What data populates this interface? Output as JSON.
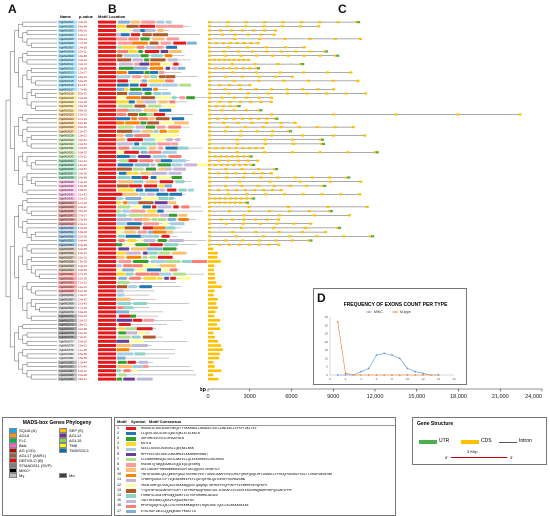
{
  "panels": {
    "a": "A",
    "b": "B",
    "c": "C",
    "d": "D"
  },
  "headers": {
    "name": "Name",
    "pvalue": "p-value",
    "motif_location": "Motif Location"
  },
  "tree_rows": 86,
  "sample_gene_prefix": "VgMADS",
  "axis_c": {
    "unit": "bp",
    "ticks": [
      "0",
      "3000",
      "6000",
      "9000",
      "12,000",
      "15,000",
      "18,000",
      "21,000",
      "24,000"
    ]
  },
  "phylogeny_legend": {
    "title": "MADS-box Genes Phylogeny",
    "items": [
      {
        "label": "SQUA (A)",
        "color": "#00b0f0"
      },
      {
        "label": "SEP (E)",
        "color": "#ffc000"
      },
      {
        "label": "AGL6",
        "color": "#ff9900"
      },
      {
        "label": "AGL12",
        "color": "#7030a0"
      },
      {
        "label": "FLC",
        "color": "#00b050"
      },
      {
        "label": "AGL15",
        "color": "#92d050"
      },
      {
        "label": "Bsis",
        "color": "#ff66cc"
      },
      {
        "label": "TM8",
        "color": "#ffff00"
      },
      {
        "label": "AG (C/D)",
        "color": "#c00000"
      },
      {
        "label": "TM3/SOC1",
        "color": "#0070c0"
      },
      {
        "label": "AGL17 (ANR1)",
        "color": "#996633"
      },
      {
        "label": "",
        "color": "#ffffff"
      },
      {
        "label": "DEF/GLO (B)",
        "color": "#ff0000"
      },
      {
        "label": "",
        "color": "#ffffff"
      },
      {
        "label": "STMADS11 (SVP)",
        "color": "#808080"
      },
      {
        "label": "",
        "color": "#ffffff"
      },
      {
        "label": "MIKC*",
        "color": "#000000"
      },
      {
        "label": "",
        "color": "#ffffff"
      },
      {
        "label": "Mγ",
        "color": "#bfbfbf"
      },
      {
        "label": "Mα",
        "color": "#404040"
      }
    ]
  },
  "motif_table": {
    "headers": [
      "Motif",
      "Symbol",
      "Motif Consensus"
    ],
    "rows": [
      {
        "n": "1",
        "color": "#e31a1c",
        "seq": "MGRGKIEIKRIENKTNRQVTFSKRRNGLLKKAEELSVLCDAEVALIVFSPTGKLYEF"
      },
      {
        "n": "2",
        "color": "#1f78b4",
        "seq": "LLQEDLSGLSLKELQNLEQKLETGLKKIR"
      },
      {
        "n": "3",
        "color": "#33a02c",
        "seq": "GHFSMESVLERYLKHSAPSEN"
      },
      {
        "n": "4",
        "color": "#ffd92f",
        "seq": "NSYLN"
      },
      {
        "n": "5",
        "color": "#a6cee3",
        "seq": "KEELLKEEELKEKEKLLQEENELNKK"
      },
      {
        "n": "6",
        "color": "#6a3d9a",
        "seq": "MPPPEELSELKRELDKKAMEELKKNHKHVRNAT"
      },
      {
        "n": "7",
        "color": "#b2df8a",
        "seq": "LLEAHHRNAVQELNLDLAKEELLQLEEKRRKEELDKLRKGG"
      },
      {
        "n": "8",
        "color": "#fb9a99",
        "seq": "HSEANTQYWQQEAAKLKQQIEQLQESHRQ"
      },
      {
        "n": "9",
        "color": "#fdbf6f",
        "seq": "RPLCAKSEPYNRNNMNNAVGDVYSKCQQSSSTRVNEYLP"
      },
      {
        "n": "10",
        "color": "#ff7f00",
        "seq": "TNFGFGDAHLQELQNHSPQAGTSGVHNYPEDTTDNVLAARPDSVLDMLPQRDPQGQLHFLDGNGLLPPRDQPGRDNLPSSLTLVHAPSNVNYNH"
      },
      {
        "n": "11",
        "color": "#cab2d6",
        "seq": "CPNRPQGSEATCPTVQEAENMEEPEPLQGYQHYNLQGYDHSPPEEMAVGNW"
      },
      {
        "n": "12",
        "color": "#ffff99",
        "seq": "VKEWTAMFQATKAQIEEREKKNQQSSTQAQHQETNPHGPPEQPPAPPYEEMMHPSEVQPKPV"
      },
      {
        "n": "13",
        "color": "#b15928",
        "seq": "YTQVFNPSEGDAPNFPSDPTTGFPMDPNGQPDHGFSDLYDSKAPLVCGSSFERGVHNQNAHPSHPQSSAEVPPM"
      },
      {
        "n": "14",
        "color": "#8dd3c7",
        "seq": "FSMNPSCSEWTMPENQQGDKFLSYVSPSMGMKLNEGEE"
      },
      {
        "n": "15",
        "color": "#bebada",
        "seq": "INLFREENAELQKKVYDQGGVNVYNV"
      },
      {
        "n": "16",
        "color": "#fb8072",
        "seq": "MPSPGQAQEVLQATLHLPEMEKMKWQEKFLRQRLKKETQDLLKLKKKKNEEKE"
      },
      {
        "n": "17",
        "color": "#80b1d3",
        "seq": "EYDLHAPINLELQQHQKNNTPKNSTLG"
      }
    ]
  },
  "gene_structure": {
    "title": "Gene Structure",
    "utr": "UTR",
    "cds": "CDS",
    "intron": "Intron",
    "scale": "3 Kbp",
    "five": "5'",
    "three": "3'",
    "colors": {
      "utr": "#4caf50",
      "cds": "#ffc000",
      "intron": "#555555"
    }
  },
  "chart_data": {
    "type": "line",
    "title": "FREQUENCY OF EXONS COUNT PER TYPE",
    "x": [
      1,
      2,
      3,
      4,
      5,
      6,
      7,
      8,
      9,
      10,
      11,
      12,
      13,
      14
    ],
    "series": [
      {
        "name": "MIKC",
        "color": "#5b9bd5",
        "values": [
          0,
          0,
          0,
          2,
          4,
          12,
          13,
          12,
          10,
          4,
          2,
          1,
          0,
          0
        ]
      },
      {
        "name": "M-type",
        "color": "#ed7d31",
        "values": [
          32,
          1,
          0,
          0,
          0,
          0,
          0,
          0,
          0,
          0,
          0,
          0,
          0,
          0
        ]
      }
    ],
    "x_ticks": [
      "0",
      "2",
      "4",
      "6",
      "8",
      "10",
      "12",
      "14",
      "16"
    ],
    "y_ticks": [
      "0",
      "5",
      "10",
      "15",
      "20",
      "25",
      "30",
      "35"
    ],
    "ylim": [
      0,
      35
    ],
    "xlim": [
      0,
      16
    ],
    "legend": "top-center",
    "grid": false
  }
}
